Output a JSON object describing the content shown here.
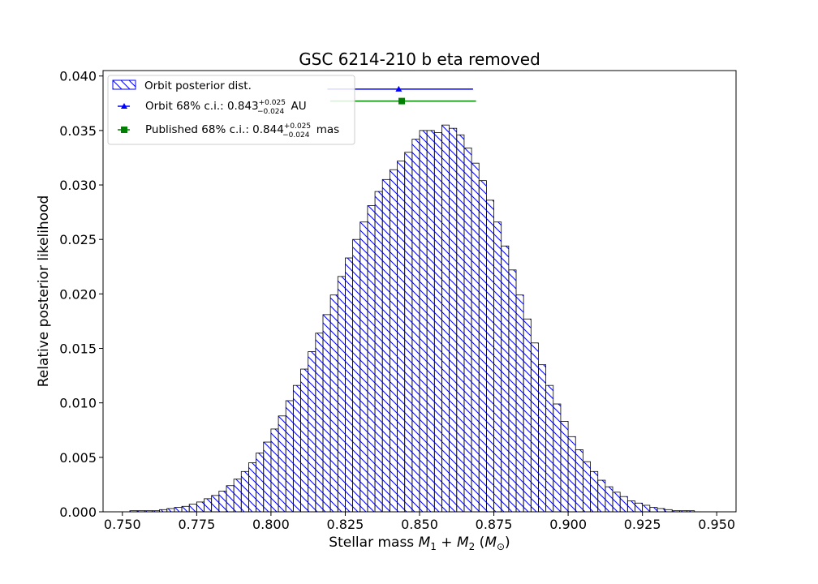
{
  "chart_data": {
    "type": "bar",
    "title": "GSC 6214-210 b eta removed",
    "xlabel_prefix": "Stellar mass ",
    "xlabel_math": "M",
    "xlabel_sub1": "1",
    "xlabel_plus": " + ",
    "xlabel_sub2": "2",
    "xlabel_unit_open": " (",
    "xlabel_unit_sub": "⊙",
    "xlabel_unit_close": ")",
    "ylabel": "Relative posterior likelihood",
    "xlim": [
      0.7435,
      0.9565
    ],
    "ylim": [
      0.0,
      0.0405
    ],
    "x_ticks": [
      "0.750",
      "0.775",
      "0.800",
      "0.825",
      "0.850",
      "0.875",
      "0.900",
      "0.925",
      "0.950"
    ],
    "x_tick_values": [
      0.75,
      0.775,
      0.8,
      0.825,
      0.85,
      0.875,
      0.9,
      0.925,
      0.95
    ],
    "y_ticks": [
      "0.000",
      "0.005",
      "0.010",
      "0.015",
      "0.020",
      "0.025",
      "0.030",
      "0.035",
      "0.040"
    ],
    "y_tick_values": [
      0.0,
      0.005,
      0.01,
      0.015,
      0.02,
      0.025,
      0.03,
      0.035,
      0.04
    ],
    "bin_width": 0.0025,
    "bin_start": 0.7525,
    "values": [
      0.0001,
      0.0001,
      0.0001,
      0.0001,
      0.0002,
      0.0003,
      0.0004,
      0.0005,
      0.0007,
      0.0009,
      0.0012,
      0.0015,
      0.0019,
      0.0024,
      0.003,
      0.0037,
      0.0045,
      0.0054,
      0.0064,
      0.0076,
      0.0088,
      0.0102,
      0.0116,
      0.0131,
      0.0147,
      0.0164,
      0.0181,
      0.0199,
      0.0216,
      0.0233,
      0.025,
      0.0266,
      0.0281,
      0.0294,
      0.0305,
      0.0314,
      0.0322,
      0.033,
      0.0342,
      0.035,
      0.035,
      0.0348,
      0.0355,
      0.0352,
      0.0346,
      0.0334,
      0.032,
      0.0304,
      0.0286,
      0.0266,
      0.0244,
      0.0222,
      0.0199,
      0.0177,
      0.0155,
      0.0135,
      0.0116,
      0.0099,
      0.0083,
      0.0069,
      0.0057,
      0.0046,
      0.0037,
      0.0029,
      0.0023,
      0.0018,
      0.0014,
      0.001,
      0.0008,
      0.0006,
      0.0004,
      0.0003,
      0.0002,
      0.0001,
      0.0001,
      0.0001
    ],
    "errorbars": [
      {
        "name": "Orbit",
        "center": 0.843,
        "low": 0.819,
        "high": 0.868,
        "y": 0.0388,
        "color": "#0000ff",
        "marker": "triangle"
      },
      {
        "name": "Published",
        "center": 0.844,
        "low": 0.82,
        "high": 0.869,
        "y": 0.0377,
        "color": "#008000",
        "marker": "square"
      }
    ],
    "legend": {
      "position": "top-left",
      "entries": [
        {
          "label": "Orbit posterior dist.",
          "type": "hist"
        },
        {
          "label": "Orbit 68% c.i.: 0.843",
          "sup": "+0.025",
          "sub": "−0.024",
          "suffix": " AU",
          "color": "#0000ff",
          "marker": "triangle"
        },
        {
          "label": "Published 68% c.i.:  0.844",
          "sup": "+0.025",
          "sub": "−0.024",
          "suffix": " mas",
          "color": "#008000",
          "marker": "square"
        }
      ]
    },
    "colors": {
      "hist_edge": "#000000",
      "hatch": "#0000ff"
    }
  }
}
